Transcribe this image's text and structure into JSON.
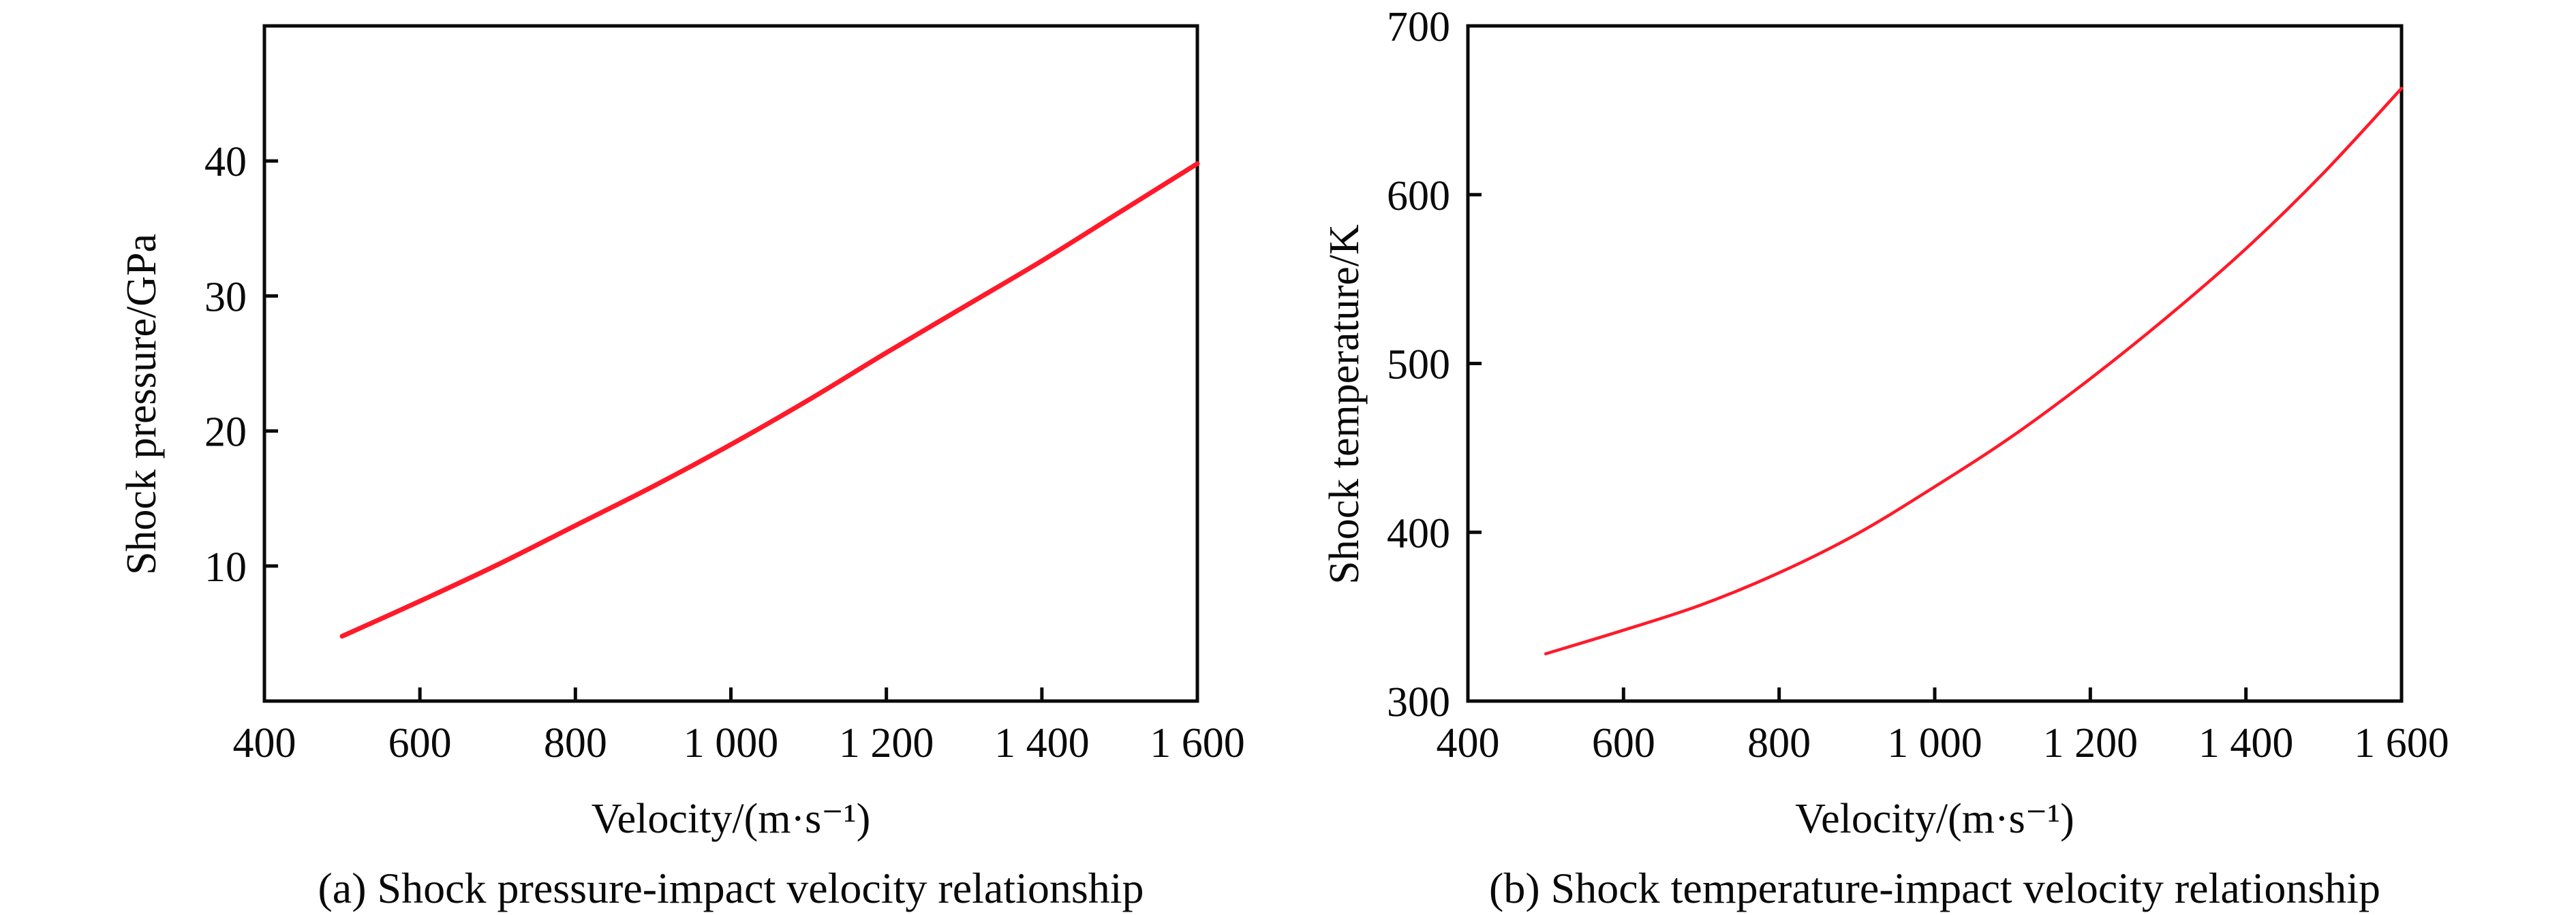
{
  "chart_data": [
    {
      "id": "a",
      "type": "line",
      "title": "",
      "caption": "(a) Shock pressure-impact velocity relationship",
      "xlabel": "Velocity/(m·s⁻¹)",
      "ylabel": "Shock pressure/GPa",
      "xlim": [
        400,
        1600
      ],
      "ylim": [
        0,
        50
      ],
      "xticks": [
        400,
        600,
        800,
        1000,
        1200,
        1400,
        1600
      ],
      "xtick_labels": [
        "400",
        "600",
        "800",
        "1 000",
        "1 200",
        "1 400",
        "1 600"
      ],
      "yticks": [
        10,
        20,
        30,
        40
      ],
      "ytick_labels": [
        "10",
        "20",
        "30",
        "40"
      ],
      "grid": false,
      "series": [
        {
          "name": "Shock pressure",
          "color": "#ff1a2a",
          "x": [
            500,
            600,
            700,
            800,
            900,
            1000,
            1100,
            1200,
            1300,
            1400,
            1500,
            1600
          ],
          "y": [
            4.8,
            7.4,
            10.1,
            13.0,
            15.9,
            19.0,
            22.3,
            25.8,
            29.2,
            32.6,
            36.2,
            39.8
          ]
        }
      ]
    },
    {
      "id": "b",
      "type": "line",
      "title": "",
      "caption": "(b) Shock temperature-impact velocity relationship",
      "xlabel": "Velocity/(m·s⁻¹)",
      "ylabel": "Shock temperature/K",
      "xlim": [
        400,
        1600
      ],
      "ylim": [
        300,
        700
      ],
      "xticks": [
        400,
        600,
        800,
        1000,
        1200,
        1400,
        1600
      ],
      "xtick_labels": [
        "400",
        "600",
        "800",
        "1 000",
        "1 200",
        "1 400",
        "1 600"
      ],
      "yticks": [
        300,
        400,
        500,
        600,
        700
      ],
      "ytick_labels": [
        "300",
        "400",
        "500",
        "600",
        "700"
      ],
      "grid": false,
      "series": [
        {
          "name": "Shock temperature",
          "color": "#ff1a2a",
          "x": [
            500,
            600,
            700,
            800,
            900,
            1000,
            1100,
            1200,
            1300,
            1400,
            1500,
            1600
          ],
          "y": [
            328,
            342,
            357,
            376,
            399,
            427,
            457,
            491,
            528,
            568,
            613,
            663
          ]
        }
      ]
    }
  ]
}
